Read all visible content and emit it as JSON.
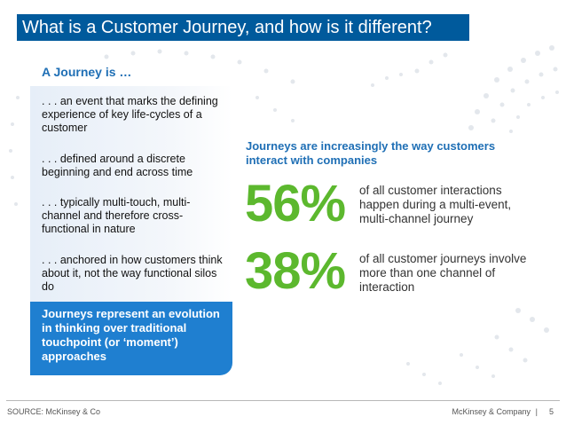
{
  "title": "What is a Customer Journey, and how is it different?",
  "left": {
    "heading": "A Journey is …",
    "items": [
      ". . . an event that marks the defining experience of key life-cycles of a customer",
      ". . . defined around a discrete beginning and end across time",
      ". . . typically multi-touch, multi-channel and therefore cross-functional in nature",
      ". . . anchored in how customers think about it, not the way functional silos do"
    ],
    "callout": "Journeys represent an evolution in thinking over traditional touchpoint (or ‘moment’) approaches"
  },
  "right": {
    "heading": "Journeys are increasingly the way customers interact with companies",
    "stats": [
      {
        "value": "56%",
        "description": "of all customer interactions happen during a multi-event, multi-channel journey"
      },
      {
        "value": "38%",
        "description": "of all customer journeys involve more than one channel of interaction"
      }
    ]
  },
  "footer": {
    "source": "SOURCE: McKinsey & Co",
    "company": "McKinsey & Company",
    "separator": "|",
    "page": "5"
  },
  "colors": {
    "title_bar": "#005a9c",
    "heading_blue": "#1f6fb5",
    "callout_blue": "#1f7fd0",
    "stat_green": "#5cb82e"
  }
}
